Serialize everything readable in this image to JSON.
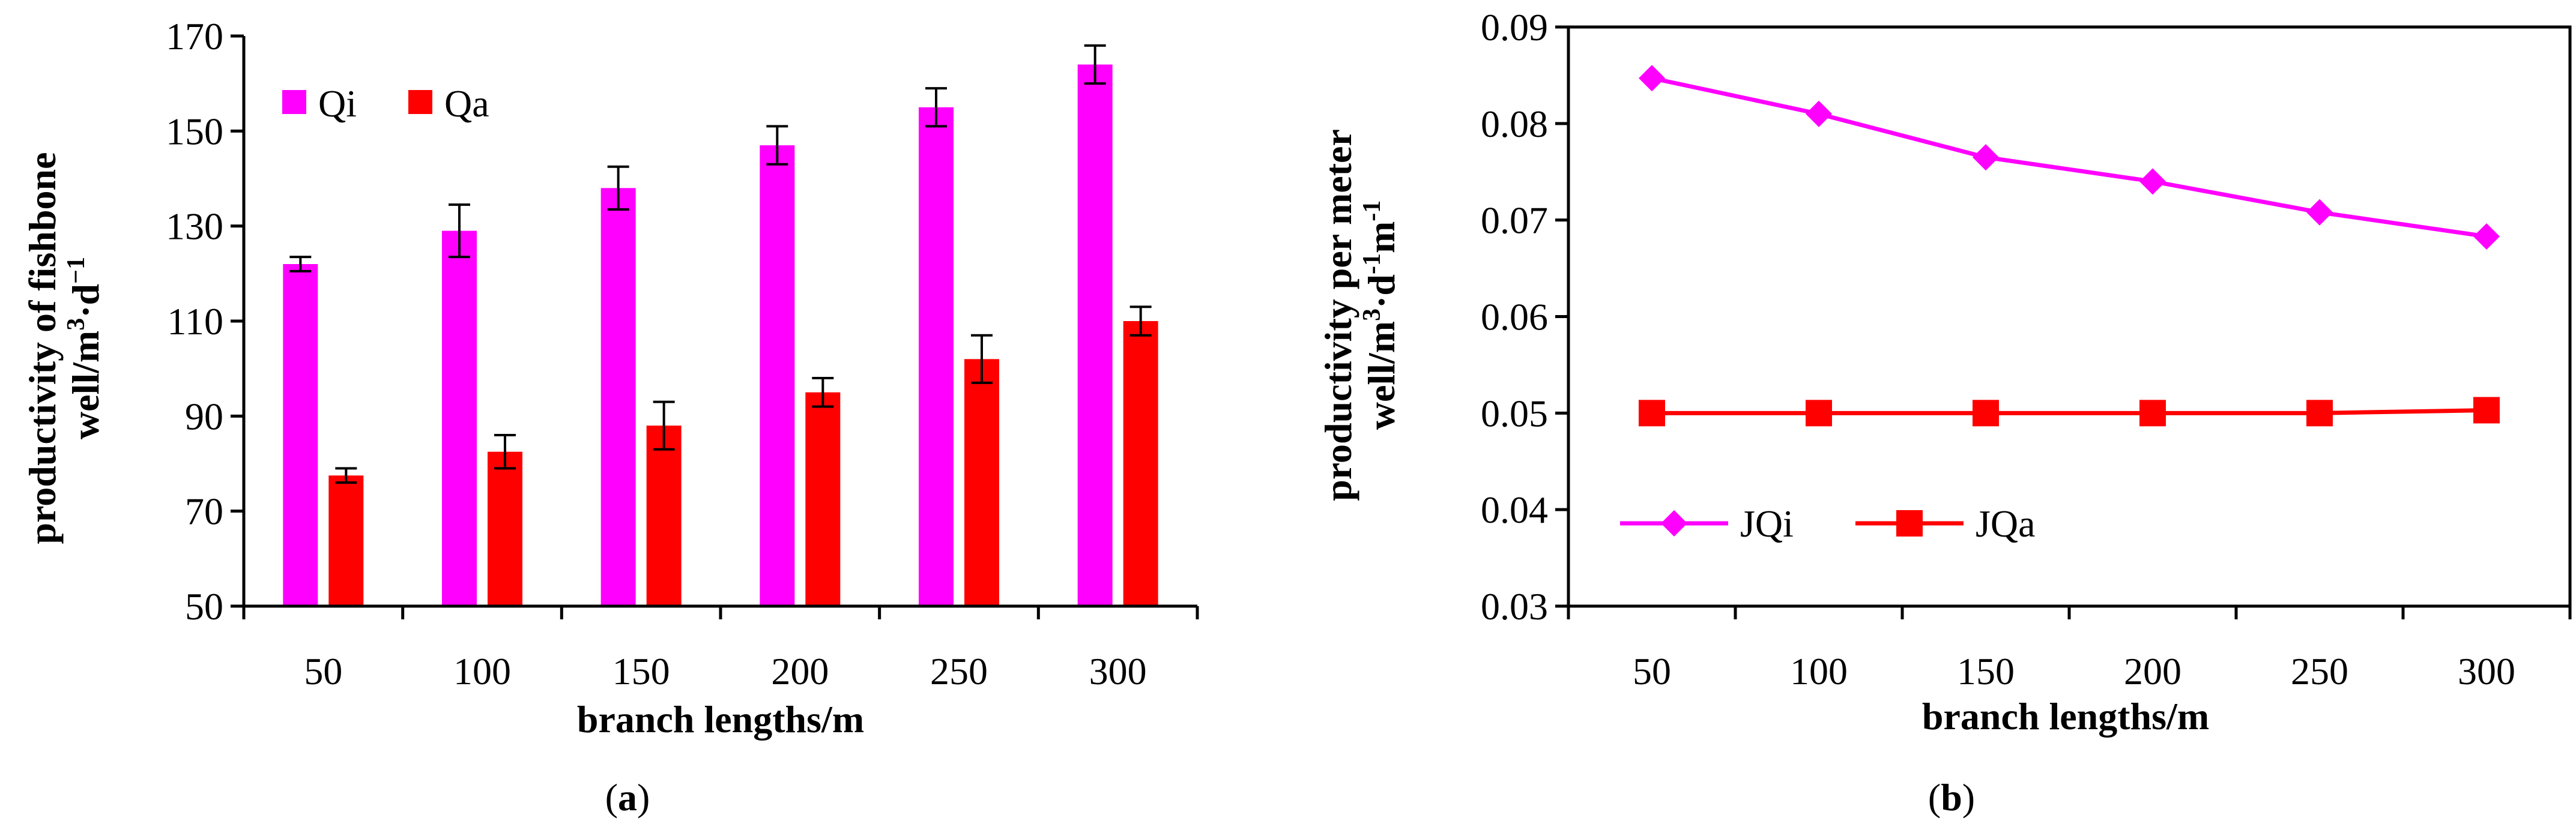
{
  "chart_data": [
    {
      "type": "bar",
      "panel_label_open": "(",
      "panel_label_letter": "a",
      "panel_label_close": ")",
      "categories": [
        "50",
        "100",
        "150",
        "200",
        "250",
        "300"
      ],
      "series": [
        {
          "name": "Qi",
          "color": "#ff00ff",
          "values": [
            122,
            129,
            138,
            147,
            155,
            164
          ],
          "errors": [
            1.5,
            5.5,
            4.5,
            4,
            4,
            4
          ]
        },
        {
          "name": "Qa",
          "color": "#ff0000",
          "values": [
            77.5,
            82.5,
            88,
            95,
            102,
            110
          ],
          "errors": [
            1.5,
            3.5,
            5,
            3,
            5,
            3
          ]
        }
      ],
      "xlabel": "branch lengths/m",
      "ylabel_line1": "productivity of fishbone",
      "ylabel_line2_prefix": "well/m",
      "ylabel_line2_sup": "3",
      "ylabel_line2_mid": "·d",
      "ylabel_line2_sup2": "−1",
      "ylim": [
        50,
        170
      ],
      "yticks": [
        "50",
        "70",
        "90",
        "110",
        "130",
        "150",
        "170"
      ],
      "legend_position": "top-left"
    },
    {
      "type": "line",
      "panel_label_open": "(",
      "panel_label_letter": "b",
      "panel_label_close": ")",
      "categories": [
        "50",
        "100",
        "150",
        "200",
        "250",
        "300"
      ],
      "series": [
        {
          "name": "JQi",
          "color": "#ff00ff",
          "marker": "diamond",
          "values": [
            0.0847,
            0.081,
            0.0765,
            0.074,
            0.0708,
            0.0683
          ]
        },
        {
          "name": "JQa",
          "color": "#ff0000",
          "marker": "square",
          "values": [
            0.05,
            0.05,
            0.05,
            0.05,
            0.05,
            0.0503
          ]
        }
      ],
      "xlabel": "branch  lengths/m",
      "ylabel_line1": "productivity  per meter",
      "ylabel_line2_prefix": "well/m",
      "ylabel_line2_sup": "3",
      "ylabel_line2_mid": "·d",
      "ylabel_line2_sup2": "-1",
      "ylabel_line2_mid2": "m",
      "ylabel_line2_sup3": "-1",
      "ylim": [
        0.03,
        0.09
      ],
      "yticks": [
        "0.03",
        "0.04",
        "0.05",
        "0.06",
        "0.07",
        "0.08",
        "0.09"
      ],
      "legend_position": "bottom-left"
    }
  ]
}
